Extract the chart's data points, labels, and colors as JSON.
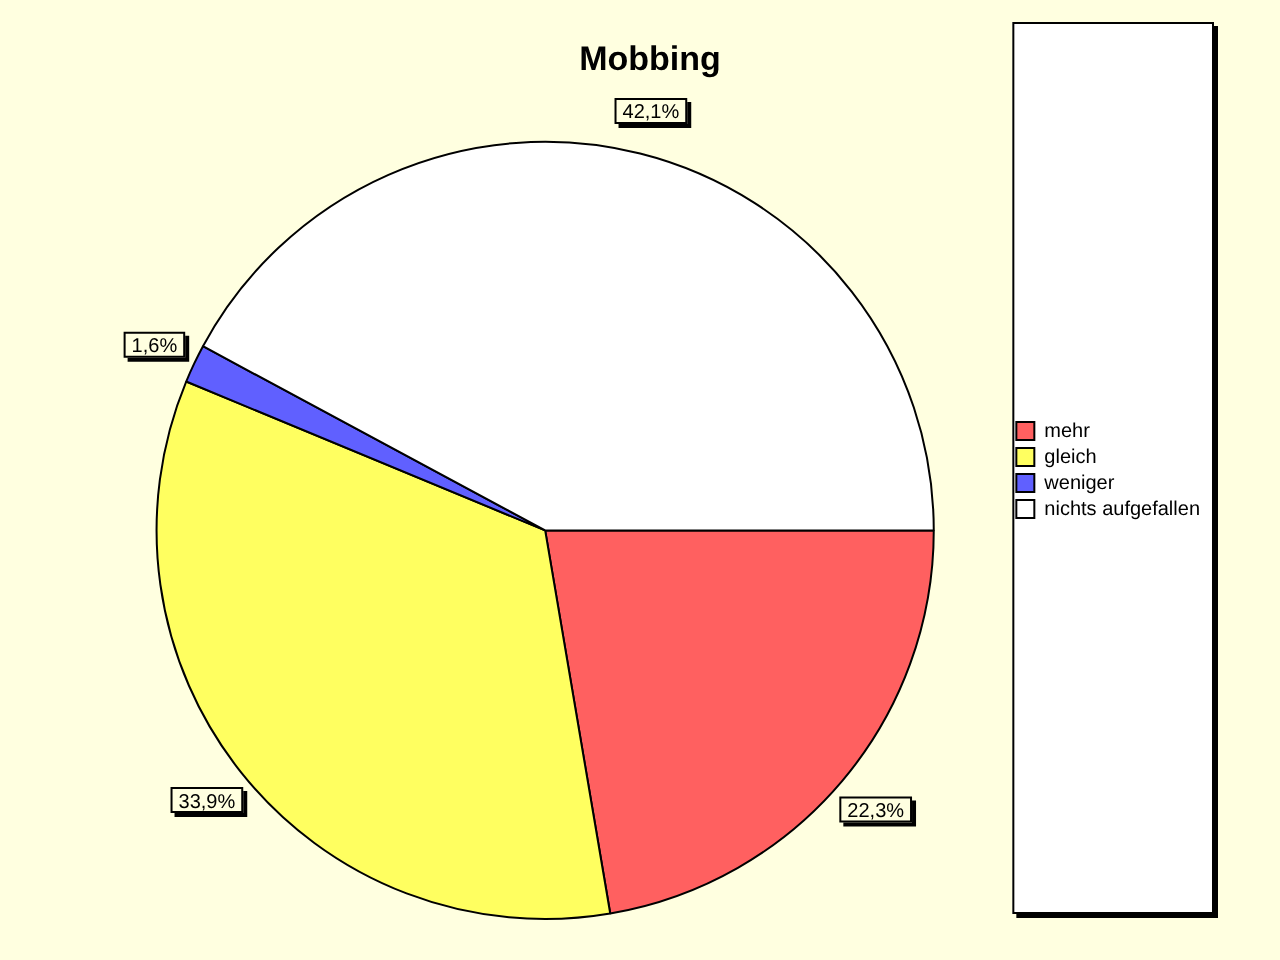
{
  "chart_data": {
    "type": "pie",
    "title": "Mobbing",
    "categories": [
      "mehr",
      "gleich",
      "weniger",
      "nichts aufgefallen"
    ],
    "values": [
      22.3,
      33.9,
      1.6,
      42.1
    ],
    "colors": [
      "#ff6060",
      "#ffff60",
      "#6060ff",
      "#ffffff"
    ],
    "value_labels": [
      "22,3%",
      "33,9%",
      "1,6%",
      "42,1%"
    ],
    "legend": "right"
  }
}
